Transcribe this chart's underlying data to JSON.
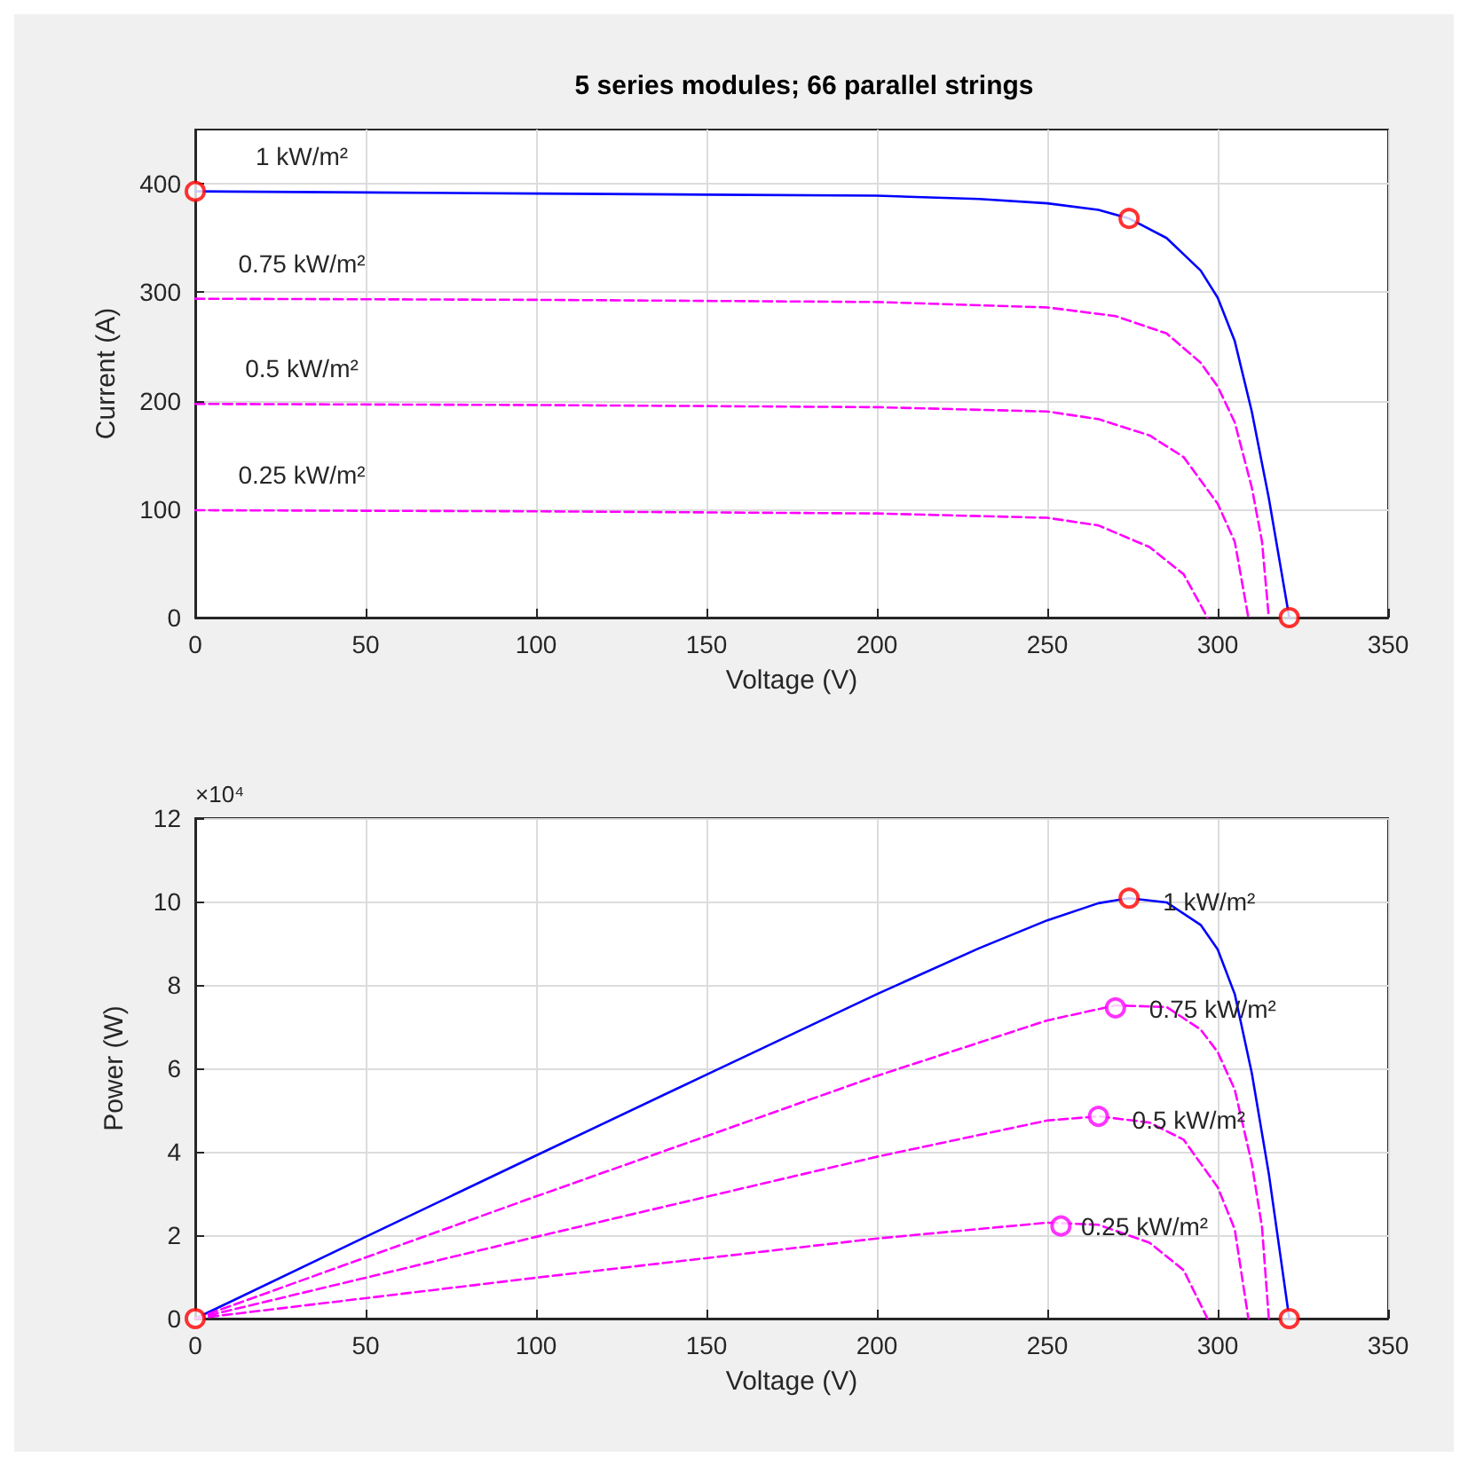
{
  "chart_data": [
    {
      "type": "line",
      "title": "5 series modules; 66 parallel strings",
      "xlabel": "Voltage (V)",
      "ylabel": "Current (A)",
      "xlim": [
        0,
        350
      ],
      "xticks": [
        0,
        50,
        100,
        150,
        200,
        250,
        300,
        350
      ],
      "ylim": [
        0,
        450
      ],
      "yticks": [
        0,
        100,
        200,
        300,
        400
      ],
      "grid": true,
      "legend": false,
      "marker": "none",
      "series": [
        {
          "name": "1 kW/m²",
          "color": "#0000ff",
          "line_style": "solid",
          "x": [
            0,
            50,
            100,
            150,
            200,
            230,
            250,
            265,
            274,
            285,
            295,
            300,
            305,
            310,
            315,
            321
          ],
          "values": [
            393,
            392,
            391,
            390,
            389,
            386,
            382,
            376,
            368,
            350,
            320,
            295,
            255,
            190,
            110,
            0
          ]
        },
        {
          "name": "0.75 kW/m²",
          "color": "#ff00ff",
          "line_style": "dashed",
          "x": [
            0,
            100,
            200,
            250,
            270,
            285,
            295,
            300,
            305,
            310,
            313,
            315
          ],
          "values": [
            294,
            293,
            291,
            286,
            278,
            262,
            235,
            213,
            180,
            120,
            70,
            0
          ]
        },
        {
          "name": "0.5 kW/m²",
          "color": "#ff00ff",
          "line_style": "dashed",
          "x": [
            0,
            100,
            200,
            250,
            265,
            280,
            290,
            300,
            305,
            309
          ],
          "values": [
            197,
            196,
            194,
            190,
            183,
            168,
            148,
            105,
            70,
            0
          ]
        },
        {
          "name": "0.25 kW/m²",
          "color": "#ff00ff",
          "line_style": "dashed",
          "x": [
            0,
            100,
            200,
            250,
            265,
            280,
            290,
            297
          ],
          "values": [
            99,
            98,
            96,
            92,
            85,
            65,
            40,
            0
          ]
        },
        {
          "type": "scatter",
          "marker": "circle",
          "color": "#ff0000",
          "x": [
            0,
            274,
            321
          ],
          "values": [
            393,
            368,
            0
          ]
        }
      ]
    },
    {
      "type": "line",
      "xlabel": "Voltage (V)",
      "ylabel": "Power (W)",
      "annotations": [
        "×10⁴"
      ],
      "xlim": [
        0,
        350
      ],
      "xticks": [
        0,
        50,
        100,
        150,
        200,
        250,
        300,
        350
      ],
      "ylim": [
        0,
        12
      ],
      "yticks": [
        0,
        2,
        4,
        6,
        8,
        10,
        12
      ],
      "grid": true,
      "legend": false,
      "marker": "none",
      "series": [
        {
          "name": "1 kW/m²",
          "color": "#0000ff",
          "line_style": "solid",
          "x": [
            0,
            50,
            100,
            150,
            200,
            230,
            250,
            265,
            274,
            285,
            295,
            300,
            305,
            310,
            315,
            321
          ],
          "values": [
            0,
            1.96,
            3.91,
            5.85,
            7.78,
            8.88,
            9.55,
            9.96,
            10.08,
            9.98,
            9.44,
            8.85,
            7.78,
            5.89,
            3.47,
            0
          ]
        },
        {
          "name": "0.75 kW/m²",
          "color": "#ff00ff",
          "line_style": "dashed",
          "x": [
            0,
            100,
            200,
            250,
            270,
            285,
            295,
            300,
            305,
            310,
            313,
            315
          ],
          "values": [
            0,
            2.93,
            5.82,
            7.15,
            7.51,
            7.47,
            6.93,
            6.39,
            5.49,
            3.72,
            2.19,
            0
          ]
        },
        {
          "name": "0.5 kW/m²",
          "color": "#ff00ff",
          "line_style": "dashed",
          "x": [
            0,
            100,
            200,
            250,
            265,
            280,
            290,
            300,
            305,
            309
          ],
          "values": [
            0,
            1.96,
            3.88,
            4.75,
            4.85,
            4.7,
            4.29,
            3.15,
            2.14,
            0
          ]
        },
        {
          "name": "0.25 kW/m²",
          "color": "#ff00ff",
          "line_style": "dashed",
          "x": [
            0,
            100,
            200,
            250,
            265,
            280,
            290,
            297
          ],
          "values": [
            0,
            0.98,
            1.92,
            2.3,
            2.25,
            1.82,
            1.16,
            0
          ]
        },
        {
          "type": "scatter",
          "marker": "circle",
          "color": "#ff0000",
          "x": [
            0,
            274,
            321
          ],
          "values": [
            0,
            10.08,
            0
          ]
        },
        {
          "type": "scatter",
          "marker": "circle",
          "color": "#ff00ff",
          "x": [
            270,
            265,
            254
          ],
          "values": [
            7.45,
            4.85,
            2.22
          ]
        }
      ]
    }
  ]
}
